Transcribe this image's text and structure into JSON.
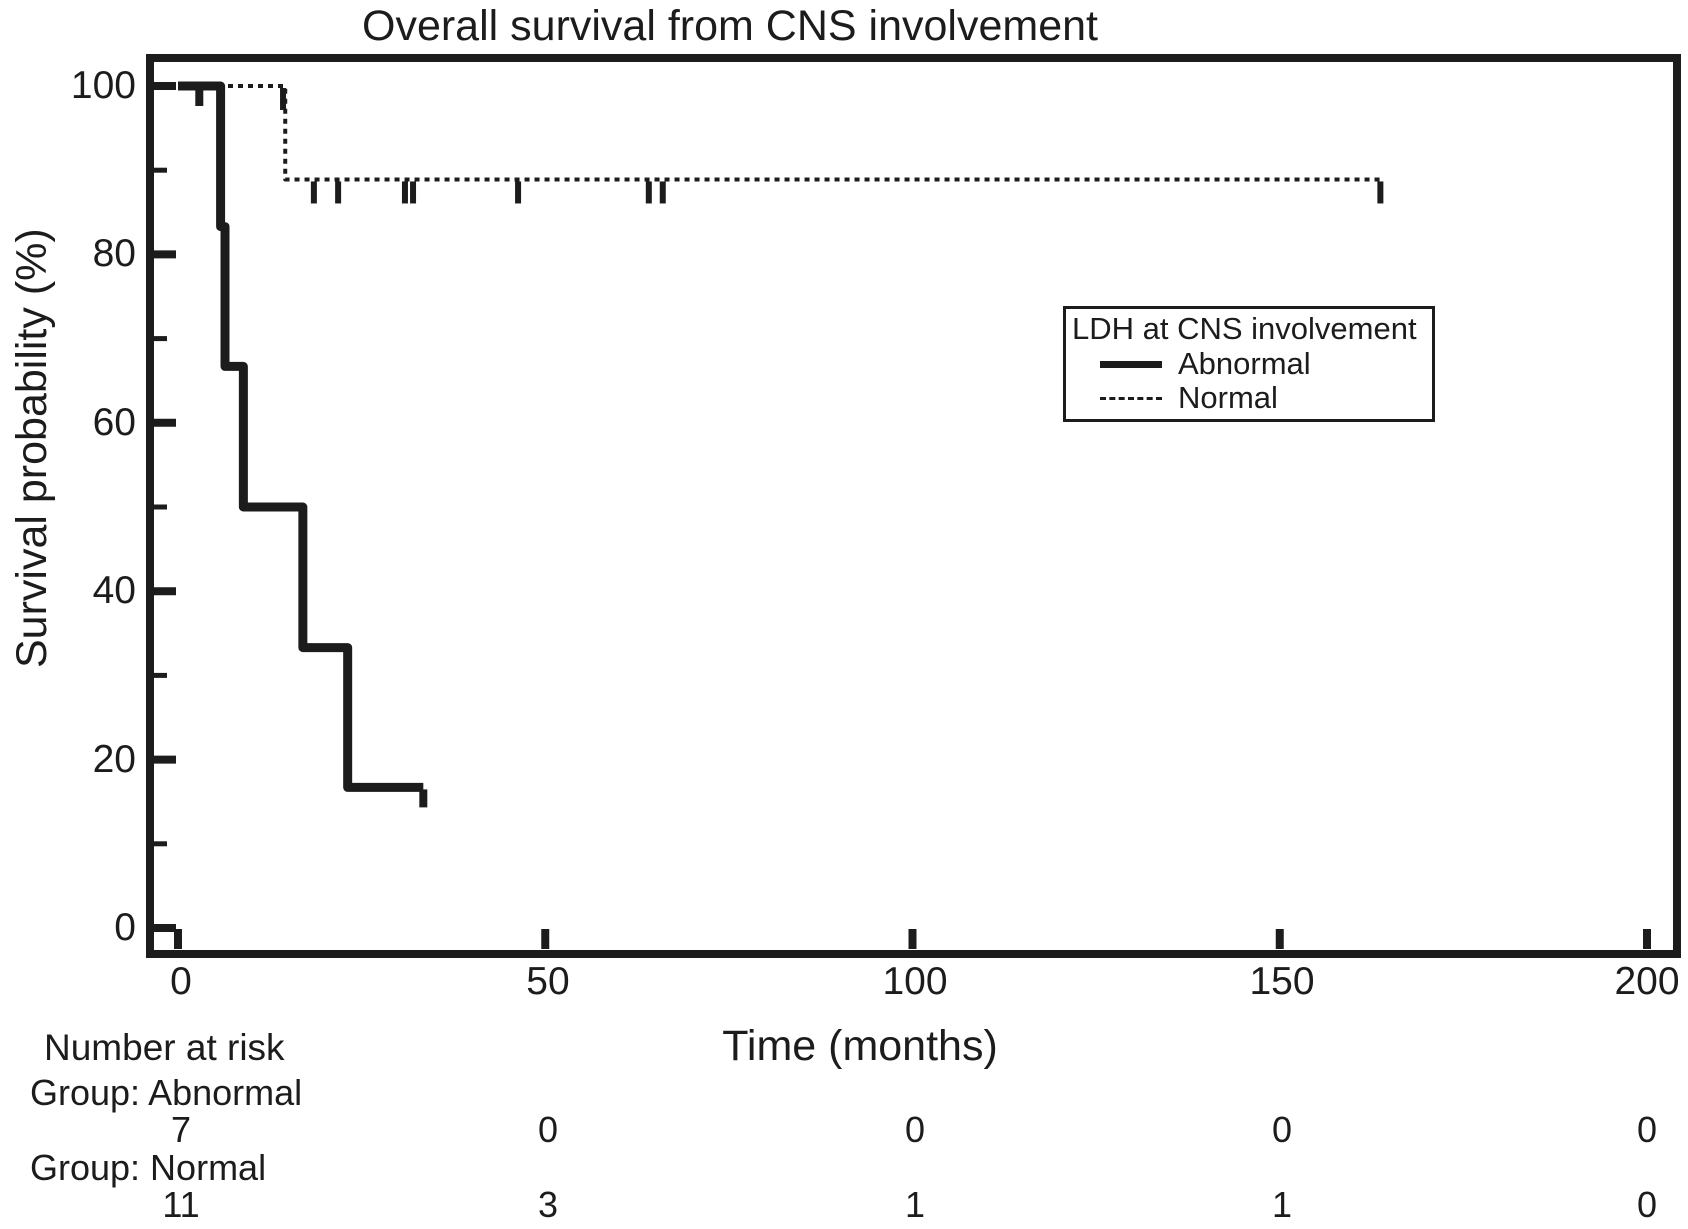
{
  "colors": {
    "ink": "#1c1c1c",
    "background": "#ffffff"
  },
  "chart_data": {
    "type": "line",
    "subtype": "kaplan-meier-step-curves",
    "title": "Overall survival from CNS involvement",
    "xlabel": "Time (months)",
    "ylabel": "Survival probability (%)",
    "xlim": [
      0,
      200
    ],
    "ylim": [
      0,
      100
    ],
    "x_ticks": [
      0,
      50,
      100,
      150,
      200
    ],
    "y_ticks": [
      100,
      80,
      60,
      40,
      20,
      0
    ],
    "y_minor_ticks": [
      90,
      70,
      50,
      30,
      10
    ],
    "grid": "off",
    "legend": {
      "title": "LDH at CNS involvement",
      "position": "upper-right",
      "entries": [
        {
          "label": "Abnormal",
          "style": "solid"
        },
        {
          "label": "Normal",
          "style": "dashed"
        }
      ]
    },
    "series": [
      {
        "name": "Abnormal",
        "style": "solid",
        "line_width": 9,
        "steps": [
          [
            0,
            100
          ],
          [
            5.8,
            100
          ],
          [
            5.8,
            83.3
          ],
          [
            6.4,
            83.3
          ],
          [
            6.4,
            66.7
          ],
          [
            8.9,
            66.7
          ],
          [
            8.9,
            50
          ],
          [
            17,
            50
          ],
          [
            17,
            33.3
          ],
          [
            23.1,
            33.3
          ],
          [
            23.1,
            16.7
          ],
          [
            33.4,
            16.7
          ]
        ],
        "censors": [
          [
            2.9,
            100
          ],
          [
            33.4,
            16.7
          ]
        ]
      },
      {
        "name": "Normal",
        "style": "dashed",
        "line_width": 4,
        "steps": [
          [
            0,
            100
          ],
          [
            14.6,
            100
          ],
          [
            14.6,
            88.9
          ],
          [
            163.7,
            88.9
          ]
        ],
        "censors": [
          [
            14.3,
            100
          ],
          [
            18.5,
            88.9
          ],
          [
            21.8,
            88.9
          ],
          [
            30.9,
            88.9
          ],
          [
            32,
            88.9
          ],
          [
            46.3,
            88.9
          ],
          [
            64.1,
            88.9
          ],
          [
            66,
            88.9
          ],
          [
            163.7,
            88.9
          ]
        ]
      }
    ],
    "risk_table": {
      "heading": "Number at risk",
      "time_points": [
        0,
        50,
        100,
        150,
        200
      ],
      "rows": [
        {
          "label": "Group: Abnormal",
          "values": [
            "7",
            "0",
            "0",
            "0",
            "0"
          ]
        },
        {
          "label": "Group: Normal",
          "values": [
            "11",
            "3",
            "1",
            "1",
            "0"
          ]
        }
      ]
    }
  }
}
